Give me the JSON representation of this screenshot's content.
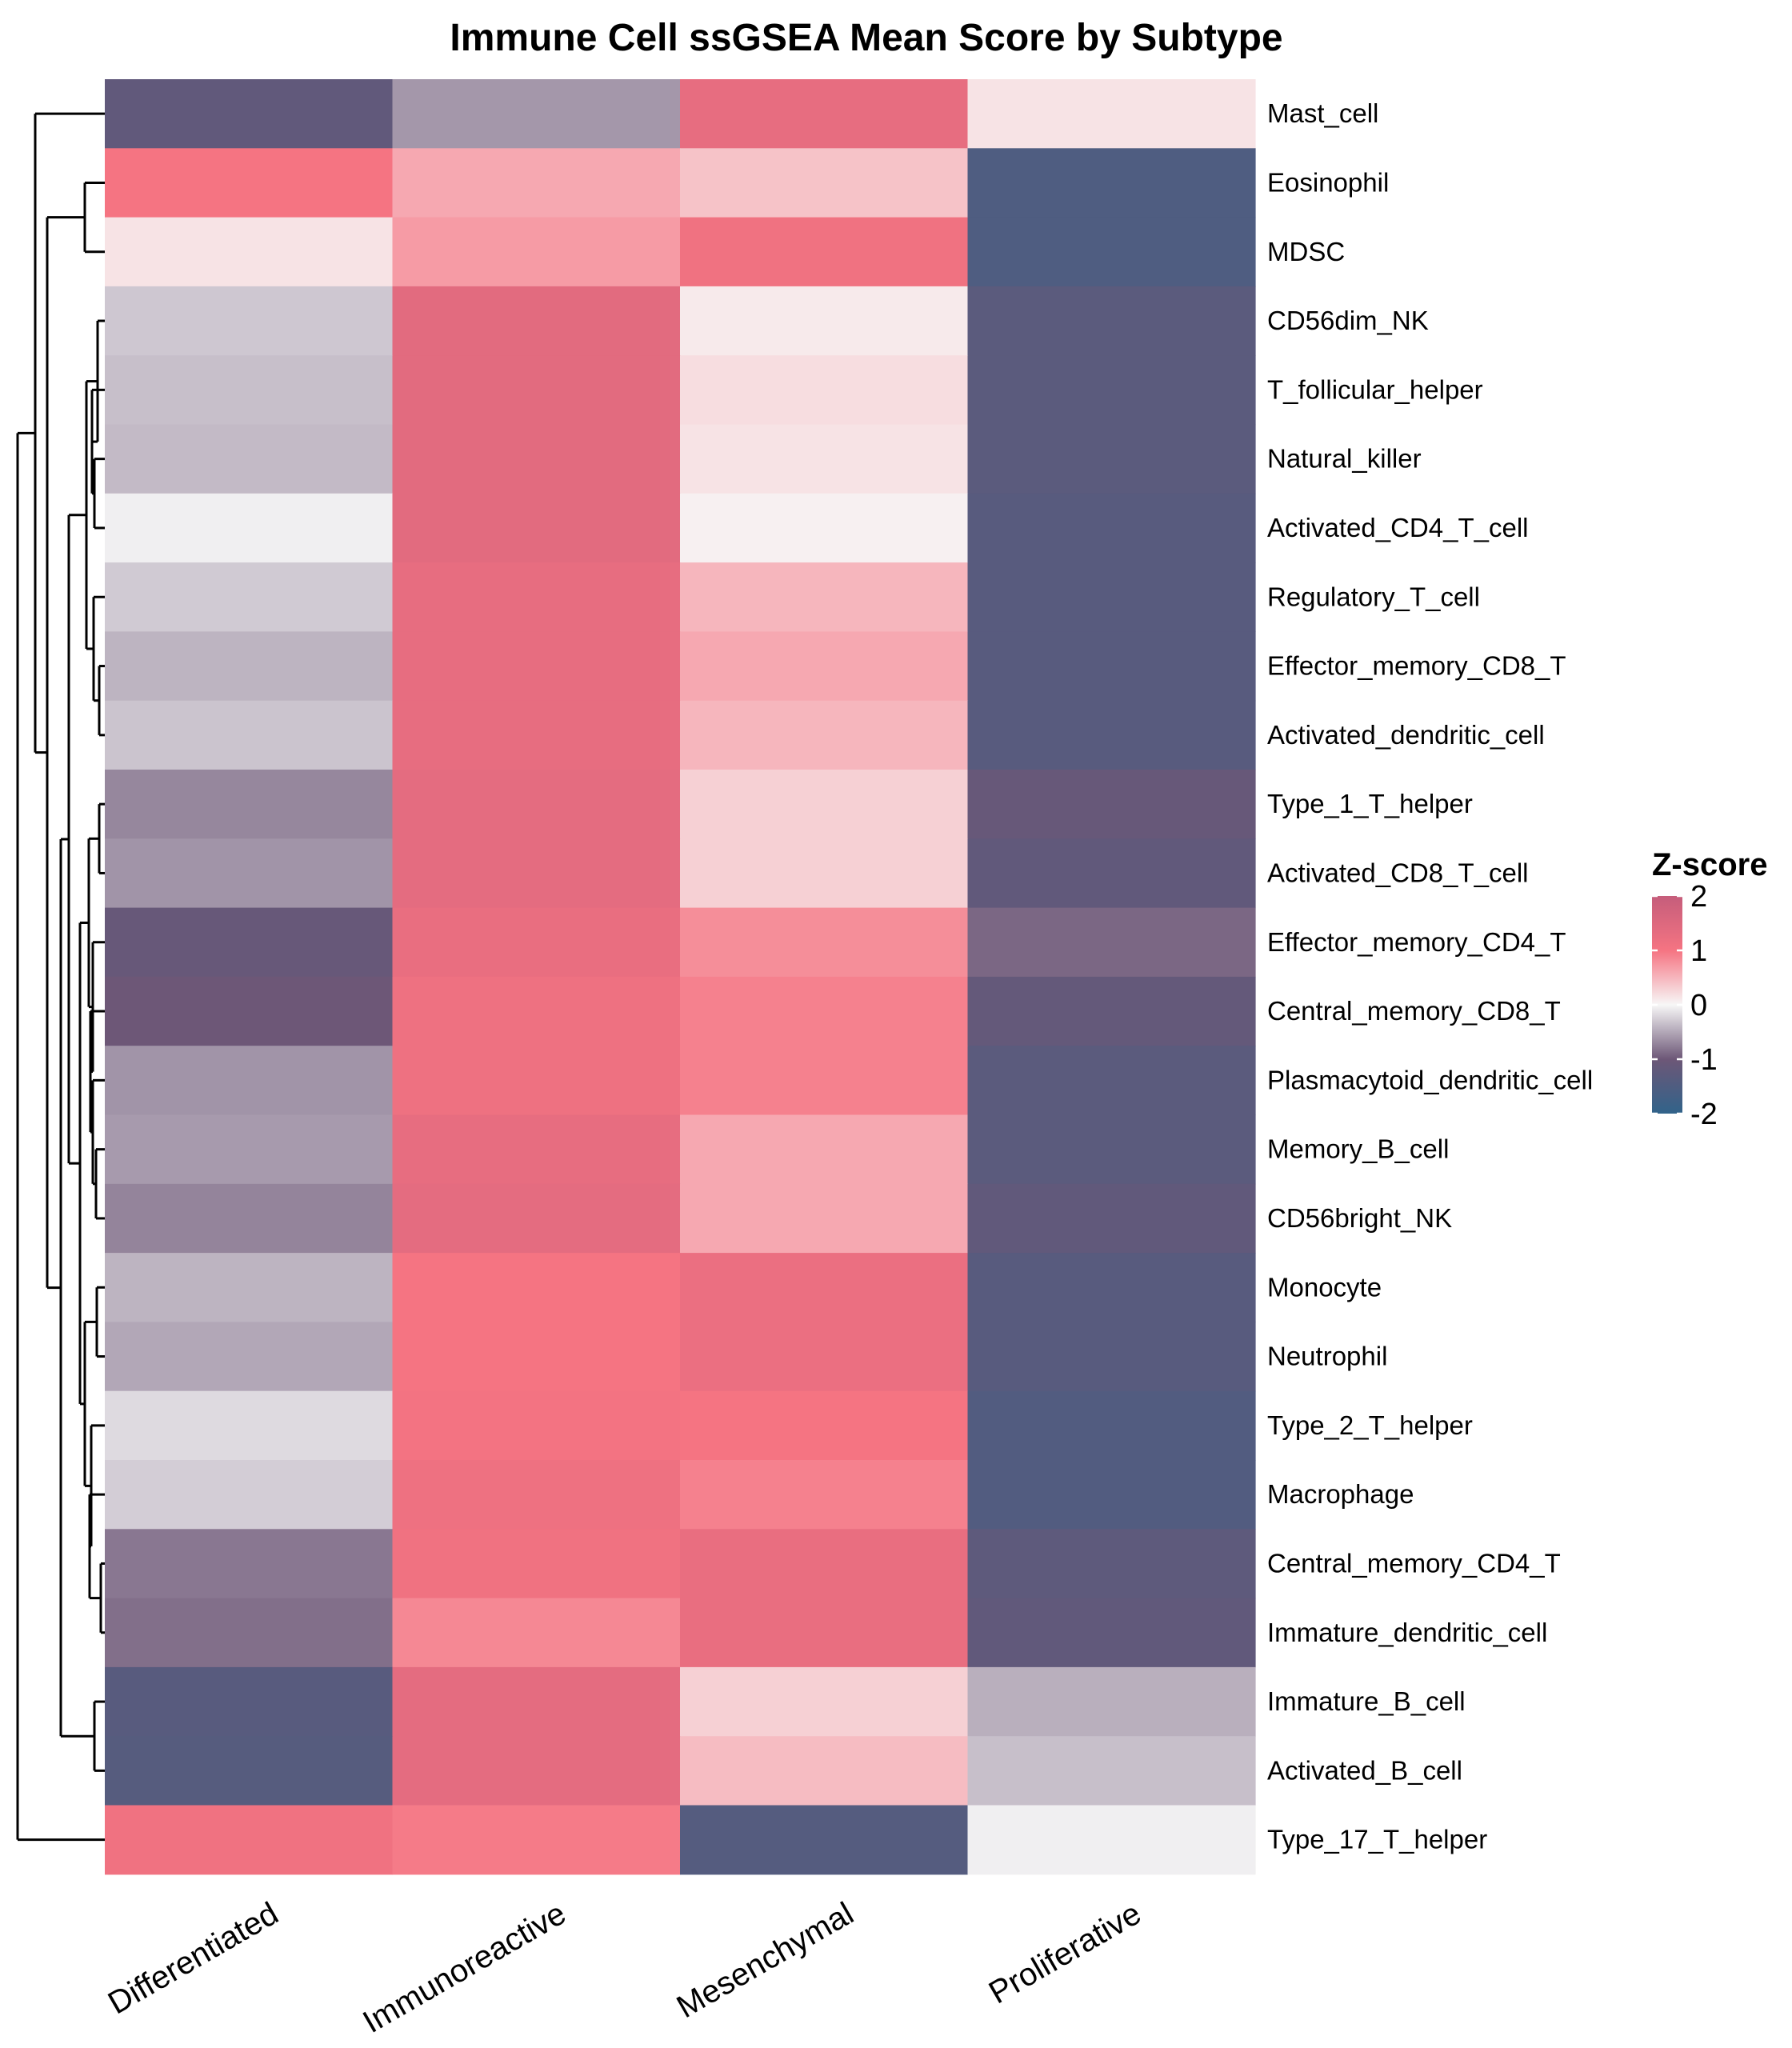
{
  "chart_data": {
    "type": "heatmap",
    "title": "Immune Cell ssGSEA Mean Score by Subtype",
    "columns": [
      "Differentiated",
      "Immunoreactive",
      "Mesenchymal",
      "Proliferative"
    ],
    "rows": [
      "Mast_cell",
      "Eosinophil",
      "MDSC",
      "CD56dim_NK",
      "T_follicular_helper",
      "Natural_killer",
      "Activated_CD4_T_cell",
      "Regulatory_T_cell",
      "Effector_memory_CD8_T",
      "Activated_dendritic_cell",
      "Type_1_T_helper",
      "Activated_CD8_T_cell",
      "Effector_memory_CD4_T",
      "Central_memory_CD8_T",
      "Plasmacytoid_dendritic_cell",
      "Memory_B_cell",
      "CD56bright_NK",
      "Monocyte",
      "Neutrophil",
      "Type_2_T_helper",
      "Macrophage",
      "Central_memory_CD4_T",
      "Immature_dendritic_cell",
      "Immature_B_cell",
      "Activated_B_cell",
      "Type_17_T_helper"
    ],
    "values": [
      [
        -1.2,
        -0.6,
        1.3,
        0.15
      ],
      [
        1.0,
        0.6,
        0.4,
        -1.5
      ],
      [
        0.15,
        0.7,
        1.1,
        -1.5
      ],
      [
        -0.3,
        1.4,
        0.1,
        -1.3
      ],
      [
        -0.35,
        1.4,
        0.2,
        -1.3
      ],
      [
        -0.38,
        1.4,
        0.15,
        -1.3
      ],
      [
        -0.05,
        1.4,
        0.05,
        -1.35
      ],
      [
        -0.28,
        1.3,
        0.5,
        -1.35
      ],
      [
        -0.42,
        1.3,
        0.6,
        -1.35
      ],
      [
        -0.32,
        1.3,
        0.5,
        -1.35
      ],
      [
        -0.7,
        1.35,
        0.3,
        -1.1
      ],
      [
        -0.62,
        1.35,
        0.3,
        -1.2
      ],
      [
        -1.1,
        1.25,
        0.8,
        -0.9
      ],
      [
        -1.0,
        1.15,
        0.9,
        -1.15
      ],
      [
        -0.62,
        1.15,
        0.9,
        -1.3
      ],
      [
        -0.58,
        1.3,
        0.6,
        -1.3
      ],
      [
        -0.72,
        1.35,
        0.6,
        -1.2
      ],
      [
        -0.42,
        1.0,
        1.2,
        -1.35
      ],
      [
        -0.5,
        1.0,
        1.2,
        -1.35
      ],
      [
        -0.18,
        1.05,
        1.0,
        -1.45
      ],
      [
        -0.26,
        1.15,
        0.9,
        -1.45
      ],
      [
        -0.8,
        1.1,
        1.25,
        -1.25
      ],
      [
        -0.85,
        0.85,
        1.25,
        -1.2
      ],
      [
        -1.35,
        1.35,
        0.3,
        -0.45
      ],
      [
        -1.38,
        1.35,
        0.45,
        -0.35
      ],
      [
        1.1,
        0.95,
        -1.4,
        -0.05
      ]
    ],
    "color_scale": {
      "stops": [
        {
          "value": -2,
          "color": "#31638a"
        },
        {
          "value": -1,
          "color": "#6d5777"
        },
        {
          "value": 0,
          "color": "#f7f7f7"
        },
        {
          "value": 1,
          "color": "#f57482"
        },
        {
          "value": 2,
          "color": "#c55d7b"
        }
      ]
    },
    "legend": {
      "title": "Z-score",
      "ticks": [
        2,
        1,
        0,
        -1,
        -2
      ],
      "position": "right"
    },
    "row_dendrogram": true,
    "grid": false
  }
}
